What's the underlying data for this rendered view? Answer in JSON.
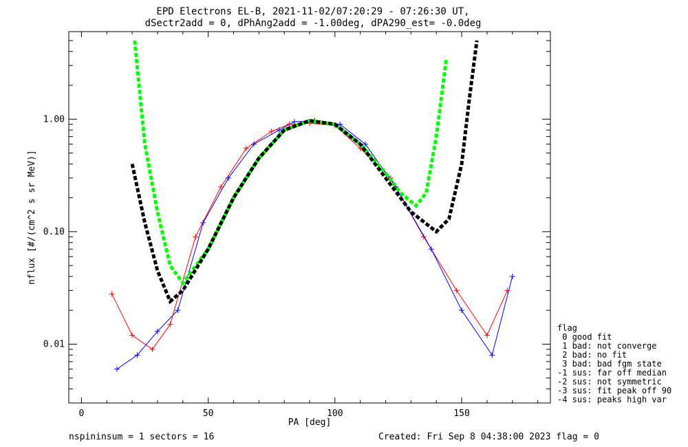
{
  "chart_data": {
    "type": "line",
    "title_line1": "EPD Electrons EL-B, 2021-11-02/07:20:29 - 07:26:30 UT,",
    "title_line2": "dSectr2add = 0, dPhAng2add = -1.00deg, dPA290_est=  -0.0deg",
    "xlabel": "PA [deg]",
    "ylabel": "nflux [#/(cm^2 s sr MeV)]",
    "xlim": [
      -5,
      185
    ],
    "ylim": [
      0.003,
      6.0
    ],
    "yscale": "log",
    "x_ticks": [
      0,
      50,
      100,
      150
    ],
    "x_tick_labels": [
      "0",
      "50",
      "100",
      "150"
    ],
    "y_ticks": [
      0.01,
      0.1,
      1.0
    ],
    "y_tick_labels": [
      "0.01",
      "0.10",
      "1.00"
    ],
    "grid": false,
    "series": [
      {
        "color": "#ff0000",
        "style": "solid-plus",
        "x": [
          12,
          20,
          28,
          35,
          45,
          55,
          65,
          75,
          82,
          90,
          100,
          110,
          122,
          135,
          148,
          160,
          168
        ],
        "y": [
          0.028,
          0.012,
          0.009,
          0.015,
          0.09,
          0.25,
          0.55,
          0.78,
          0.9,
          0.92,
          0.88,
          0.55,
          0.3,
          0.09,
          0.03,
          0.012,
          0.03
        ]
      },
      {
        "color": "#0000ff",
        "style": "solid-plus",
        "x": [
          14,
          22,
          30,
          38,
          48,
          58,
          68,
          78,
          84,
          92,
          102,
          112,
          124,
          138,
          150,
          162,
          170
        ],
        "y": [
          0.006,
          0.008,
          0.013,
          0.02,
          0.12,
          0.3,
          0.6,
          0.8,
          0.95,
          0.97,
          0.9,
          0.6,
          0.25,
          0.07,
          0.02,
          0.008,
          0.04
        ]
      }
    ],
    "fit_curves": [
      {
        "color": "#00ff00",
        "style": "dashed",
        "x": [
          21,
          25,
          30,
          35,
          40,
          50,
          60,
          70,
          80,
          90,
          100,
          110,
          120,
          126,
          132,
          136,
          140,
          144
        ],
        "y": [
          5.0,
          0.6,
          0.15,
          0.05,
          0.035,
          0.07,
          0.2,
          0.45,
          0.8,
          0.97,
          0.9,
          0.6,
          0.33,
          0.22,
          0.17,
          0.22,
          0.7,
          3.5
        ]
      },
      {
        "color": "#000000",
        "style": "dashed",
        "x": [
          20,
          25,
          30,
          35,
          40,
          50,
          60,
          70,
          80,
          90,
          100,
          110,
          120,
          130,
          140,
          145,
          150,
          153,
          156
        ],
        "y": [
          0.4,
          0.12,
          0.045,
          0.024,
          0.03,
          0.07,
          0.2,
          0.45,
          0.8,
          0.97,
          0.9,
          0.6,
          0.3,
          0.15,
          0.1,
          0.13,
          0.4,
          1.5,
          5.0
        ]
      }
    ],
    "legend": {
      "placement": "right-bottom",
      "title": "flag",
      "entries": [
        " 0 good fit",
        " 1 bad: not converge",
        " 2 bad: no fit",
        " 3 bad: bad fgm state",
        "-1 sus: far off median",
        "-2 sus: not symmetric",
        "-3 sus: fit peak off 90",
        "-4 sus: peaks high var"
      ]
    }
  },
  "footer": {
    "left": "nspininsum =  1  sectors = 16",
    "right": "Created: Fri Sep  8 04:38:00 2023   flag = 0"
  },
  "colors": {
    "red": "#ff0000",
    "blue": "#0000ff",
    "green": "#00ff00",
    "black": "#000000"
  }
}
